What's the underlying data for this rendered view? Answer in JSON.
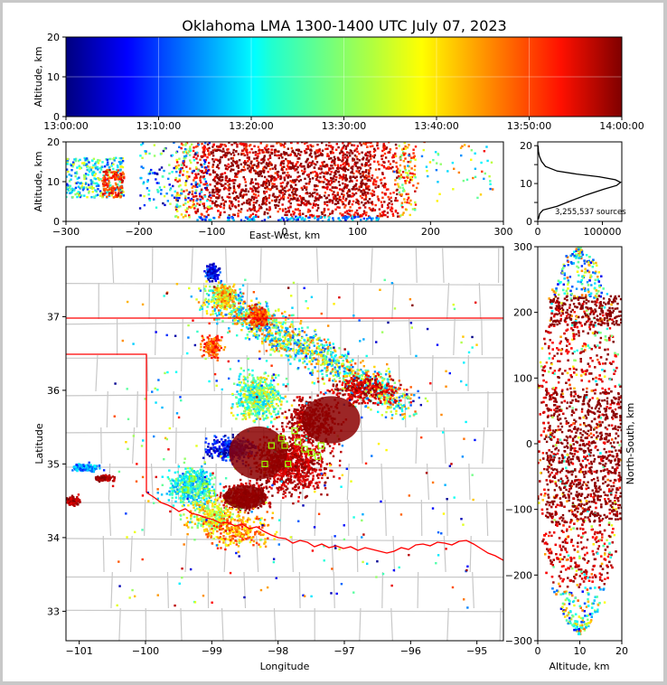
{
  "title": "Oklahoma LMA 1300-1400 UTC July 07, 2023",
  "colors": {
    "background": "#ffffff",
    "frame": "#c8c8c8",
    "state_border": "#ff0000",
    "county_lines": "#c8c8c8",
    "station_marker": "#9aff00"
  },
  "chart_data": [
    {
      "type": "heatmap",
      "panel": "time-altitude",
      "ylabel": "Altitude, km",
      "ylim": [
        0,
        20
      ],
      "y_ticks": [
        "0",
        "10",
        "20"
      ],
      "x_ticks": [
        "13:00:00",
        "13:10:00",
        "13:20:00",
        "13:30:00",
        "13:40:00",
        "13:50:00",
        "14:00:00"
      ],
      "colormap": "jet",
      "grid": true
    },
    {
      "type": "scatter",
      "panel": "east-west-altitude",
      "xlabel": "East-West, km",
      "ylabel": "Altitude, km",
      "xlim": [
        -300,
        300
      ],
      "ylim": [
        0,
        20
      ],
      "x_ticks": [
        "−300",
        "−200",
        "−100",
        "0",
        "100",
        "200",
        "300"
      ],
      "y_ticks": [
        "0",
        "10",
        "20"
      ]
    },
    {
      "type": "line",
      "panel": "altitude-histogram",
      "annotation": "3,255,537 sources",
      "x_ticks": [
        "0",
        "100000"
      ],
      "y_ticks": [
        "0",
        "5",
        "10",
        "15",
        "20"
      ],
      "xlim": [
        0,
        130000
      ],
      "ylim": [
        0,
        21
      ],
      "x": [
        500,
        1500,
        3000,
        8000,
        30000,
        52000,
        75000,
        102000,
        122000,
        128000,
        120000,
        95000,
        60000,
        30000,
        12000,
        6000,
        2500,
        1000,
        500
      ],
      "y": [
        0.5,
        1.0,
        2.0,
        3.0,
        4.0,
        5.5,
        7.0,
        8.5,
        9.5,
        10.3,
        11.0,
        11.8,
        12.5,
        13.3,
        14.5,
        15.8,
        17.2,
        18.5,
        20
      ]
    },
    {
      "type": "scatter",
      "panel": "plan-view",
      "xlabel": "Longitude",
      "ylabel": "Latitude",
      "xlim": [
        -101.2,
        -94.6
      ],
      "ylim": [
        32.6,
        37.95
      ],
      "x_ticks": [
        "−101",
        "−100",
        "−99",
        "−98",
        "−97",
        "−96",
        "−95"
      ],
      "y_ticks": [
        "33",
        "34",
        "35",
        "36",
        "37"
      ]
    },
    {
      "type": "scatter",
      "panel": "altitude-north-south",
      "xlabel": "Altitude, km",
      "ylabel": "North-South, km",
      "xlim": [
        0,
        20
      ],
      "ylim": [
        -300,
        300
      ],
      "x_ticks": [
        "0",
        "10",
        "20"
      ],
      "y_ticks": [
        "−300",
        "−200",
        "−100",
        "0",
        "100",
        "200",
        "300"
      ]
    }
  ]
}
